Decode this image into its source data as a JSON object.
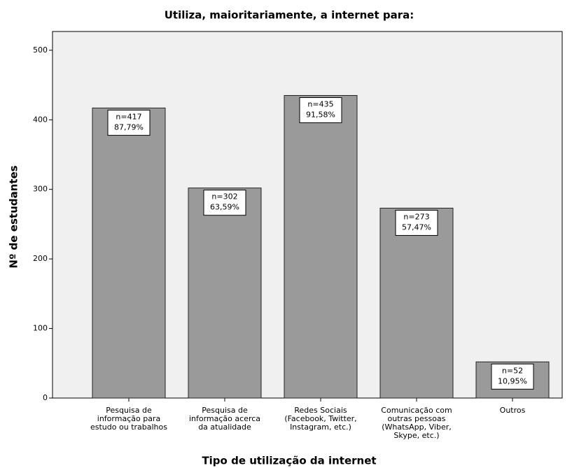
{
  "chart_data": {
    "type": "bar",
    "title": "Utiliza, maioritariamente, a internet para:",
    "x_label": "Tipo de utilização da internet",
    "y_label": "Nº de estudantes",
    "categories": [
      [
        "Pesquisa de",
        "informação para",
        "estudo ou trabalhos"
      ],
      [
        "Pesquisa de",
        "informação acerca",
        "da atualidade"
      ],
      [
        "Redes Sociais",
        "(Facebook, Twitter,",
        "Instagram, etc.)"
      ],
      [
        "Comunicação com",
        "outras pessoas",
        "(WhatsApp, Viber,",
        "Skype, etc.)"
      ],
      [
        "Outros"
      ]
    ],
    "values": [
      417,
      302,
      435,
      273,
      52
    ],
    "value_labels": [
      [
        "n=417",
        "87,79%"
      ],
      [
        "n=302",
        "63,59%"
      ],
      [
        "n=435",
        "91,58%"
      ],
      [
        "n=273",
        "57,47%"
      ],
      [
        "n=52",
        "10,95%"
      ]
    ],
    "color": "#9a9a9a",
    "ylim": [
      0,
      527
    ],
    "yticks": [
      0,
      100,
      200,
      300,
      400,
      500
    ]
  }
}
